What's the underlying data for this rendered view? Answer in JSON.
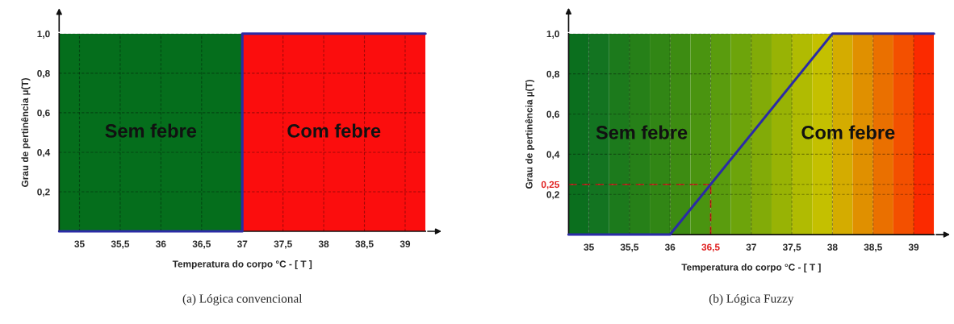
{
  "chart_data": [
    {
      "type": "line",
      "xlabel": "Temperatura do corpo °C - [ T ]",
      "ylabel": "Grau de pertinência µ(T)",
      "x": [
        34.75,
        37,
        37,
        39.25
      ],
      "series": [
        {
          "color": "#2b2ba6",
          "values": [
            0,
            0,
            1,
            1
          ]
        }
      ],
      "xlim": [
        34.75,
        39.25
      ],
      "ylim": [
        0,
        1.0
      ],
      "xticks": [
        35,
        {
          "value": 35.5,
          "label": "35,5"
        },
        36,
        {
          "value": 36.5,
          "label": "36,5"
        },
        37,
        {
          "value": 37.5,
          "label": "37,5"
        },
        38,
        {
          "value": 38.5,
          "label": "38,5"
        },
        39
      ],
      "yticks": [
        {
          "value": 0.2,
          "label": "0,2"
        },
        {
          "value": 0.4,
          "label": "0,4"
        },
        {
          "value": 0.6,
          "label": "0,6"
        },
        {
          "value": 0.8,
          "label": "0,8"
        },
        {
          "value": 1.0,
          "label": "1,0"
        }
      ],
      "bands": [
        {
          "axis": "x",
          "from": 34.75,
          "to": 37,
          "label": "Sem febre",
          "color": "#056e1c"
        },
        {
          "axis": "x",
          "from": 37,
          "to": 39.25,
          "label": "Com febre",
          "color": "#fb0d0d"
        }
      ],
      "grid": true,
      "marker": "none",
      "line_style": "solid",
      "annotations": [
        "(a) Lógica convencional"
      ]
    },
    {
      "type": "line",
      "xlabel": "Temperatura do corpo °C - [ T ]",
      "ylabel": "Grau de pertinência µ(T)",
      "x": [
        34.75,
        36,
        38,
        39.25
      ],
      "series": [
        {
          "color": "#2b2ba6",
          "values": [
            0,
            0,
            1,
            1
          ]
        }
      ],
      "xlim": [
        34.75,
        39.25
      ],
      "ylim": [
        0,
        1.0
      ],
      "xticks": [
        35,
        {
          "value": 35.5,
          "label": "35,5"
        },
        36,
        {
          "value": 36.5,
          "label": "36,5"
        },
        37,
        {
          "value": 37.5,
          "label": "37,5"
        },
        38,
        {
          "value": 38.5,
          "label": "38,5"
        },
        39
      ],
      "yticks": [
        {
          "value": 0.2,
          "label": "0,2"
        },
        {
          "value": 0.25,
          "label": "0,25"
        },
        {
          "value": 0.4,
          "label": "0,4"
        },
        {
          "value": 0.6,
          "label": "0,6"
        },
        {
          "value": 0.8,
          "label": "0,8"
        },
        {
          "value": 1.0,
          "label": "1,0"
        }
      ],
      "bands": [
        {
          "axis": "x",
          "from": 34.75,
          "to": 35.0,
          "color": "#0b6f1e"
        },
        {
          "axis": "x",
          "from": 35.0,
          "to": 35.25,
          "color": "#137421"
        },
        {
          "axis": "x",
          "from": 35.25,
          "to": 35.5,
          "color": "#1c7a1c"
        },
        {
          "axis": "x",
          "from": 35.5,
          "to": 35.75,
          "color": "#268018"
        },
        {
          "axis": "x",
          "from": 35.75,
          "to": 36.0,
          "color": "#318615"
        },
        {
          "axis": "x",
          "from": 36.0,
          "to": 36.25,
          "color": "#3d8c12"
        },
        {
          "axis": "x",
          "from": 36.25,
          "to": 36.5,
          "color": "#4a9410"
        },
        {
          "axis": "x",
          "from": 36.5,
          "to": 36.75,
          "color": "#5a9c0e"
        },
        {
          "axis": "x",
          "from": 36.75,
          "to": 37.0,
          "color": "#6da40b"
        },
        {
          "axis": "x",
          "from": 37.0,
          "to": 37.25,
          "color": "#82ab08"
        },
        {
          "axis": "x",
          "from": 37.25,
          "to": 37.5,
          "color": "#98b305"
        },
        {
          "axis": "x",
          "from": 37.5,
          "to": 37.75,
          "color": "#b0bb02"
        },
        {
          "axis": "x",
          "from": 37.75,
          "to": 38.0,
          "color": "#c4c000"
        },
        {
          "axis": "x",
          "from": 38.0,
          "to": 38.25,
          "color": "#d4ac00"
        },
        {
          "axis": "x",
          "from": 38.25,
          "to": 38.5,
          "color": "#e09000"
        },
        {
          "axis": "x",
          "from": 38.5,
          "to": 38.75,
          "color": "#ea7000"
        },
        {
          "axis": "x",
          "from": 38.75,
          "to": 39.0,
          "color": "#f35000"
        },
        {
          "axis": "x",
          "from": 39.0,
          "to": 39.25,
          "color": "#fb2a00"
        }
      ],
      "ref_lines": [
        {
          "axis": "y",
          "value": 0.25,
          "color": "#e02020",
          "line_style": "dashed"
        },
        {
          "axis": "x",
          "value": 36.5,
          "color": "#e02020",
          "line_style": "dashed"
        }
      ],
      "grid": true,
      "marker": "none",
      "line_style": "solid",
      "annotations": [
        "Sem febre",
        "Com febre",
        "(b) Lógica Fuzzy"
      ]
    }
  ]
}
